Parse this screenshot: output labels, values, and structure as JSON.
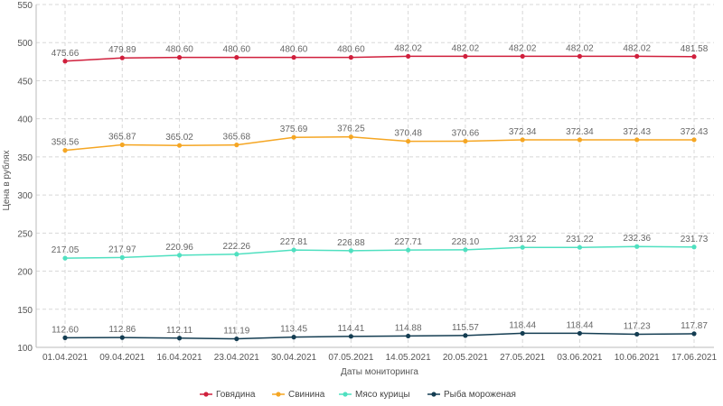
{
  "chart_data": {
    "type": "line",
    "title": "",
    "xlabel": "Даты мониторинга",
    "ylabel": "Цена в рублях",
    "ylim": [
      100,
      550
    ],
    "yticks": [
      100,
      150,
      200,
      250,
      300,
      350,
      400,
      450,
      500,
      550
    ],
    "grid": true,
    "legend_position": "bottom-center",
    "categories": [
      "01.04.2021",
      "09.04.2021",
      "16.04.2021",
      "23.04.2021",
      "30.04.2021",
      "07.05.2021",
      "14.05.2021",
      "20.05.2021",
      "27.05.2021",
      "03.06.2021",
      "10.06.2021",
      "17.06.2021"
    ],
    "series": [
      {
        "name": "Говядина",
        "color": "#d01f3c",
        "values": [
          475.66,
          479.89,
          480.6,
          480.6,
          480.6,
          480.6,
          482.02,
          482.02,
          482.02,
          482.02,
          482.02,
          481.58
        ],
        "labels": [
          "475.66",
          "479.89",
          "480.60",
          "480.60",
          "480.60",
          "480.60",
          "482.02",
          "482.02",
          "482.02",
          "482.02",
          "482.02",
          "481.58"
        ]
      },
      {
        "name": "Свинина",
        "color": "#f5a623",
        "values": [
          358.56,
          365.87,
          365.02,
          365.68,
          375.69,
          376.25,
          370.48,
          370.66,
          372.34,
          372.34,
          372.43,
          372.43
        ],
        "labels": [
          "358.56",
          "365.87",
          "365.02",
          "365.68",
          "375.69",
          "376.25",
          "370.48",
          "370.66",
          "372.34",
          "372.34",
          "372.43",
          "372.43"
        ]
      },
      {
        "name": "Мясо курицы",
        "color": "#4fe0c0",
        "values": [
          217.05,
          217.97,
          220.96,
          222.26,
          227.81,
          226.88,
          227.71,
          228.1,
          231.22,
          231.22,
          232.36,
          231.73
        ],
        "labels": [
          "217.05",
          "217.97",
          "220.96",
          "222.26",
          "227.81",
          "226.88",
          "227.71",
          "228.10",
          "231.22",
          "231.22",
          "232.36",
          "231.73"
        ]
      },
      {
        "name": "Рыба мороженая",
        "color": "#143d52",
        "values": [
          112.6,
          112.86,
          112.11,
          111.19,
          113.45,
          114.41,
          114.88,
          115.57,
          118.44,
          118.44,
          117.23,
          117.87
        ],
        "labels": [
          "112.60",
          "112.86",
          "112.11",
          "111.19",
          "113.45",
          "114.41",
          "114.88",
          "115.57",
          "118.44",
          "118.44",
          "117.23",
          "117.87"
        ]
      }
    ]
  }
}
